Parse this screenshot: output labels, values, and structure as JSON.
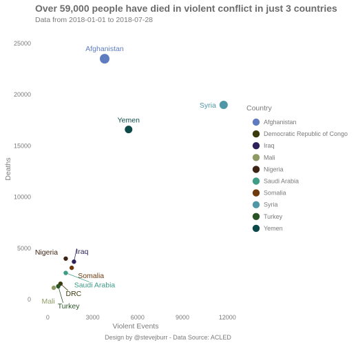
{
  "chart_data": {
    "type": "scatter",
    "title": "Over 59,000 people have died in violent conflict in just 3 countries",
    "subtitle": "Data from 2018-01-01 to 2018-07-28",
    "xlabel": "Violent Events",
    "ylabel": "Deaths",
    "caption": "Design by @stevejburr - Data Source: ACLED",
    "xlim": [
      -800,
      13000
    ],
    "ylim": [
      -1200,
      26000
    ],
    "x_ticks": [
      0,
      3000,
      6000,
      9000,
      12000
    ],
    "y_ticks": [
      0,
      5000,
      10000,
      15000,
      20000,
      25000
    ],
    "grid": false,
    "legend": {
      "title": "Country",
      "position": "right",
      "items": [
        {
          "label": "Afghanistan",
          "color": "#5e7cbf"
        },
        {
          "label": "Democratic Republic of Congo",
          "color": "#3b3a0d"
        },
        {
          "label": "Iraq",
          "color": "#2c2158"
        },
        {
          "label": "Mali",
          "color": "#8f9b65"
        },
        {
          "label": "Nigeria",
          "color": "#3d2313"
        },
        {
          "label": "Saudi Arabia",
          "color": "#3f9c86"
        },
        {
          "label": "Somalia",
          "color": "#6e3a0e"
        },
        {
          "label": "Syria",
          "color": "#4f97a6"
        },
        {
          "label": "Turkey",
          "color": "#285426"
        },
        {
          "label": "Yemen",
          "color": "#0b4a48"
        }
      ]
    },
    "points": [
      {
        "country": "Afghanistan",
        "label": "Afghanistan",
        "x": 3800,
        "y": 23500,
        "color": "#5e7cbf"
      },
      {
        "country": "Syria",
        "label": "Syria",
        "x": 11750,
        "y": 19000,
        "color": "#4f97a6"
      },
      {
        "country": "Yemen",
        "label": "Yemen",
        "x": 5400,
        "y": 16600,
        "color": "#0b4a48"
      },
      {
        "country": "Nigeria",
        "label": "Nigeria",
        "x": 1200,
        "y": 4000,
        "color": "#3d2313"
      },
      {
        "country": "Iraq",
        "label": "Iraq",
        "x": 1750,
        "y": 3700,
        "color": "#2c2158"
      },
      {
        "country": "Somalia",
        "label": "Somalia",
        "x": 1600,
        "y": 3100,
        "color": "#6e3a0e"
      },
      {
        "country": "Saudi Arabia",
        "label": "Saudi Arabia",
        "x": 1200,
        "y": 2600,
        "color": "#3f9c86"
      },
      {
        "country": "Democratic Republic of Congo",
        "label": "DRC",
        "x": 850,
        "y": 1550,
        "color": "#3b3a0d"
      },
      {
        "country": "Turkey",
        "label": "Turkey",
        "x": 700,
        "y": 1300,
        "color": "#285426"
      },
      {
        "country": "Mali",
        "label": "Mali",
        "x": 400,
        "y": 1150,
        "color": "#8f9b65"
      }
    ]
  }
}
